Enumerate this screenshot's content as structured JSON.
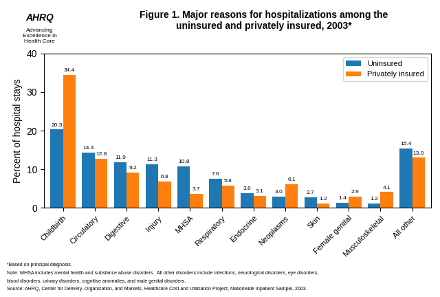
{
  "chart_data": {
    "type": "bar",
    "title": "Figure 1. Major reasons for hospitalizations among the\nuninsured and privately insured, 2003*",
    "ylabel": "Percent of hospital stays",
    "categories": [
      "Childbirth",
      "Circulatory",
      "Digestive",
      "Injury",
      "MHSA",
      "Respiratory",
      "Endocrine",
      "Neoplasms",
      "Skin",
      "Female genital",
      "Musculoskeletal",
      "All other"
    ],
    "series": [
      {
        "name": "Uninsured",
        "values": [
          20.3,
          14.4,
          11.9,
          11.3,
          10.8,
          7.6,
          3.8,
          3.0,
          2.7,
          1.4,
          1.2,
          15.4
        ]
      },
      {
        "name": "Privately insured",
        "values": [
          34.4,
          12.8,
          9.2,
          6.8,
          3.7,
          5.8,
          3.1,
          6.1,
          1.2,
          2.9,
          4.1,
          13.0
        ]
      }
    ],
    "ylim": [
      0,
      40
    ],
    "yticks": [
      0,
      10,
      20,
      30,
      40
    ],
    "grid": false,
    "legend": "upper right",
    "data_labels": true,
    "annotations": [
      "AHRQ",
      "Advancing\nExcellence in\nHealth Care",
      "*Based on principal diagnosis.",
      "Note: MHSA includes mental health and substance abuse disorders.  All other disorders include infections, neurological disorders, eye disorders,",
      "blood disorders, urinary disorders, cognitive anomalies, and male genital disorders.",
      "Source: AHRQ, Center for Delivery, Organization, and Markets, Healthcare Cost and Utilization Project, Nationwide Inpatient Sample, 2003."
    ]
  }
}
